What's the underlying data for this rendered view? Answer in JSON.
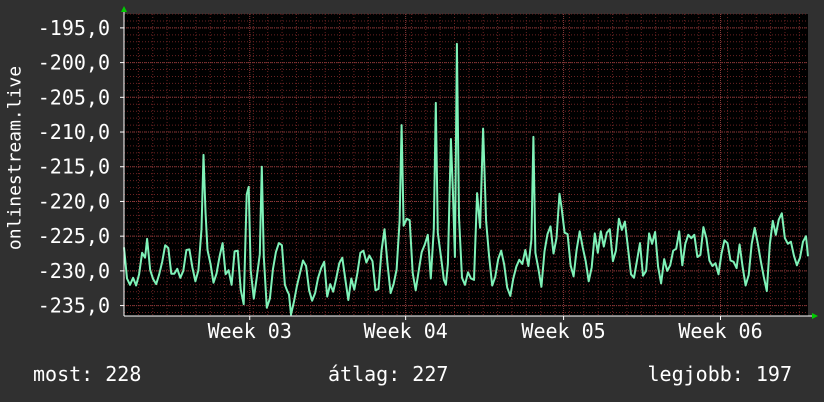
{
  "chart_data": {
    "type": "line",
    "ylabel": "onlinestream.live",
    "ylim": [
      -236.5,
      -193.0
    ],
    "yticks": [
      "-195,0",
      "-200,0",
      "-205,0",
      "-210,0",
      "-215,0",
      "-220,0",
      "-225,0",
      "-230,0",
      "-235,0"
    ],
    "ytick_values": [
      -195,
      -200,
      -205,
      -210,
      -215,
      -220,
      -225,
      -230,
      -235
    ],
    "xlim": [
      0,
      6.8
    ],
    "xticks": [
      "Week 03",
      "Week 04",
      "Week 05",
      "Week 06"
    ],
    "xtick_values": [
      1.25,
      2.8,
      4.37,
      5.93
    ],
    "grid": true,
    "colors": {
      "background": "#303030",
      "plot": "#000000",
      "grid": "#6a2222",
      "line": "#7ff2b8",
      "axis": "#ffffff",
      "arrow": "#00cc00"
    },
    "series": [
      {
        "values": [
          [
            0.0,
            -226.6
          ],
          [
            0.03,
            -231.1
          ],
          [
            0.06,
            -232.0
          ],
          [
            0.09,
            -231.0
          ],
          [
            0.12,
            -232.1
          ],
          [
            0.15,
            -230.5
          ],
          [
            0.18,
            -227.4
          ],
          [
            0.21,
            -228.1
          ],
          [
            0.23,
            -225.4
          ],
          [
            0.26,
            -229.9
          ],
          [
            0.29,
            -231.2
          ],
          [
            0.32,
            -231.9
          ],
          [
            0.35,
            -230.5
          ],
          [
            0.38,
            -228.7
          ],
          [
            0.41,
            -226.3
          ],
          [
            0.44,
            -226.7
          ],
          [
            0.47,
            -230.4
          ],
          [
            0.5,
            -230.4
          ],
          [
            0.53,
            -229.7
          ],
          [
            0.56,
            -231.0
          ],
          [
            0.59,
            -230.0
          ],
          [
            0.62,
            -227.0
          ],
          [
            0.65,
            -226.9
          ],
          [
            0.68,
            -229.5
          ],
          [
            0.71,
            -231.5
          ],
          [
            0.74,
            -229.9
          ],
          [
            0.77,
            -224.0
          ],
          [
            0.79,
            -213.3
          ],
          [
            0.81,
            -221.5
          ],
          [
            0.83,
            -227.0
          ],
          [
            0.86,
            -229.0
          ],
          [
            0.89,
            -231.7
          ],
          [
            0.92,
            -230.4
          ],
          [
            0.95,
            -227.9
          ],
          [
            0.98,
            -226.0
          ],
          [
            1.01,
            -230.5
          ],
          [
            1.04,
            -229.9
          ],
          [
            1.07,
            -232.0
          ],
          [
            1.1,
            -227.2
          ],
          [
            1.13,
            -227.1
          ],
          [
            1.16,
            -232.7
          ],
          [
            1.19,
            -234.8
          ],
          [
            1.22,
            -219.0
          ],
          [
            1.24,
            -217.9
          ],
          [
            1.26,
            -229.9
          ],
          [
            1.29,
            -234.0
          ],
          [
            1.32,
            -230.9
          ],
          [
            1.35,
            -227.6
          ],
          [
            1.37,
            -215.0
          ],
          [
            1.39,
            -228.0
          ],
          [
            1.42,
            -235.3
          ],
          [
            1.45,
            -234.0
          ],
          [
            1.48,
            -229.8
          ],
          [
            1.51,
            -227.3
          ],
          [
            1.54,
            -226.0
          ],
          [
            1.57,
            -226.3
          ],
          [
            1.6,
            -232.0
          ],
          [
            1.62,
            -232.8
          ],
          [
            1.64,
            -233.4
          ],
          [
            1.66,
            -236.3
          ],
          [
            1.69,
            -234.4
          ],
          [
            1.72,
            -232.1
          ],
          [
            1.75,
            -230.3
          ],
          [
            1.78,
            -228.5
          ],
          [
            1.81,
            -229.3
          ],
          [
            1.84,
            -232.8
          ],
          [
            1.87,
            -234.3
          ],
          [
            1.9,
            -233.2
          ],
          [
            1.93,
            -231.0
          ],
          [
            1.96,
            -229.6
          ],
          [
            1.99,
            -228.7
          ],
          [
            2.02,
            -233.7
          ],
          [
            2.05,
            -231.9
          ],
          [
            2.08,
            -233.0
          ],
          [
            2.11,
            -231.1
          ],
          [
            2.14,
            -228.9
          ],
          [
            2.17,
            -228.1
          ],
          [
            2.2,
            -231.2
          ],
          [
            2.23,
            -234.2
          ],
          [
            2.26,
            -231.1
          ],
          [
            2.29,
            -232.7
          ],
          [
            2.32,
            -230.3
          ],
          [
            2.35,
            -227.4
          ],
          [
            2.38,
            -227.1
          ],
          [
            2.41,
            -228.8
          ],
          [
            2.44,
            -227.8
          ],
          [
            2.47,
            -228.6
          ],
          [
            2.5,
            -232.8
          ],
          [
            2.53,
            -232.6
          ],
          [
            2.56,
            -227.1
          ],
          [
            2.59,
            -224.0
          ],
          [
            2.62,
            -229.0
          ],
          [
            2.65,
            -233.2
          ],
          [
            2.68,
            -231.9
          ],
          [
            2.71,
            -229.8
          ],
          [
            2.74,
            -222.8
          ],
          [
            2.76,
            -209.0
          ],
          [
            2.78,
            -223.5
          ],
          [
            2.81,
            -222.5
          ],
          [
            2.84,
            -222.7
          ],
          [
            2.87,
            -230.3
          ],
          [
            2.9,
            -232.8
          ],
          [
            2.93,
            -230.0
          ],
          [
            2.96,
            -227.3
          ],
          [
            2.99,
            -226.2
          ],
          [
            3.02,
            -224.8
          ],
          [
            3.05,
            -231.1
          ],
          [
            3.08,
            -224.0
          ],
          [
            3.1,
            -205.8
          ],
          [
            3.12,
            -224.5
          ],
          [
            3.15,
            -227.9
          ],
          [
            3.18,
            -231.3
          ],
          [
            3.2,
            -232.0
          ],
          [
            3.22,
            -229.0
          ],
          [
            3.25,
            -211.0
          ],
          [
            3.27,
            -218.6
          ],
          [
            3.29,
            -228.0
          ],
          [
            3.31,
            -197.3
          ],
          [
            3.33,
            -222.3
          ],
          [
            3.36,
            -231.0
          ],
          [
            3.39,
            -232.0
          ],
          [
            3.42,
            -230.2
          ],
          [
            3.45,
            -231.1
          ],
          [
            3.48,
            -231.3
          ],
          [
            3.51,
            -218.8
          ],
          [
            3.54,
            -223.8
          ],
          [
            3.57,
            -209.5
          ],
          [
            3.6,
            -222.8
          ],
          [
            3.63,
            -227.9
          ],
          [
            3.66,
            -232.1
          ],
          [
            3.69,
            -230.9
          ],
          [
            3.72,
            -228.3
          ],
          [
            3.75,
            -227.1
          ],
          [
            3.78,
            -229.1
          ],
          [
            3.81,
            -232.4
          ],
          [
            3.84,
            -233.6
          ],
          [
            3.87,
            -231.1
          ],
          [
            3.9,
            -229.4
          ],
          [
            3.93,
            -228.4
          ],
          [
            3.96,
            -229.0
          ],
          [
            3.99,
            -227.0
          ],
          [
            4.02,
            -229.3
          ],
          [
            4.05,
            -225.5
          ],
          [
            4.07,
            -210.7
          ],
          [
            4.09,
            -227.4
          ],
          [
            4.12,
            -229.7
          ],
          [
            4.15,
            -232.3
          ],
          [
            4.18,
            -227.2
          ],
          [
            4.21,
            -224.7
          ],
          [
            4.24,
            -223.6
          ],
          [
            4.27,
            -227.5
          ],
          [
            4.3,
            -225.3
          ],
          [
            4.33,
            -218.9
          ],
          [
            4.35,
            -220.9
          ],
          [
            4.38,
            -224.5
          ],
          [
            4.41,
            -224.7
          ],
          [
            4.44,
            -229.2
          ],
          [
            4.47,
            -230.8
          ],
          [
            4.5,
            -227.0
          ],
          [
            4.53,
            -224.3
          ],
          [
            4.56,
            -226.6
          ],
          [
            4.59,
            -228.6
          ],
          [
            4.62,
            -231.5
          ],
          [
            4.65,
            -229.5
          ],
          [
            4.68,
            -224.6
          ],
          [
            4.71,
            -227.4
          ],
          [
            4.74,
            -224.3
          ],
          [
            4.77,
            -226.5
          ],
          [
            4.8,
            -224.5
          ],
          [
            4.83,
            -224.0
          ],
          [
            4.86,
            -228.6
          ],
          [
            4.89,
            -227.1
          ],
          [
            4.92,
            -222.5
          ],
          [
            4.95,
            -224.1
          ],
          [
            4.98,
            -222.9
          ],
          [
            5.01,
            -226.6
          ],
          [
            5.04,
            -230.5
          ],
          [
            5.07,
            -231.0
          ],
          [
            5.1,
            -228.5
          ],
          [
            5.13,
            -226.0
          ],
          [
            5.16,
            -230.7
          ],
          [
            5.19,
            -230.0
          ],
          [
            5.22,
            -224.6
          ],
          [
            5.25,
            -226.1
          ],
          [
            5.28,
            -224.4
          ],
          [
            5.31,
            -229.4
          ],
          [
            5.34,
            -231.8
          ],
          [
            5.37,
            -228.3
          ],
          [
            5.4,
            -230.0
          ],
          [
            5.43,
            -229.2
          ],
          [
            5.46,
            -227.1
          ],
          [
            5.49,
            -226.8
          ],
          [
            5.52,
            -224.3
          ],
          [
            5.55,
            -229.2
          ],
          [
            5.58,
            -226.1
          ],
          [
            5.61,
            -224.8
          ],
          [
            5.64,
            -225.3
          ],
          [
            5.67,
            -224.8
          ],
          [
            5.7,
            -228.0
          ],
          [
            5.73,
            -227.7
          ],
          [
            5.76,
            -223.7
          ],
          [
            5.79,
            -225.3
          ],
          [
            5.82,
            -228.5
          ],
          [
            5.85,
            -229.3
          ],
          [
            5.88,
            -228.9
          ],
          [
            5.91,
            -230.5
          ],
          [
            5.94,
            -227.5
          ],
          [
            5.97,
            -225.6
          ],
          [
            6.0,
            -226.0
          ],
          [
            6.03,
            -228.5
          ],
          [
            6.06,
            -228.7
          ],
          [
            6.09,
            -229.6
          ],
          [
            6.12,
            -226.2
          ],
          [
            6.15,
            -229.4
          ],
          [
            6.18,
            -232.1
          ],
          [
            6.21,
            -230.6
          ],
          [
            6.24,
            -226.1
          ],
          [
            6.27,
            -223.8
          ],
          [
            6.3,
            -226.0
          ],
          [
            6.33,
            -228.5
          ],
          [
            6.36,
            -230.8
          ],
          [
            6.39,
            -232.9
          ],
          [
            6.42,
            -226.2
          ],
          [
            6.45,
            -222.8
          ],
          [
            6.48,
            -224.8
          ],
          [
            6.51,
            -222.6
          ],
          [
            6.54,
            -221.7
          ],
          [
            6.57,
            -225.3
          ],
          [
            6.6,
            -226.1
          ],
          [
            6.63,
            -225.8
          ],
          [
            6.66,
            -227.8
          ],
          [
            6.69,
            -229.2
          ],
          [
            6.72,
            -228.1
          ],
          [
            6.75,
            -225.8
          ],
          [
            6.78,
            -225.0
          ],
          [
            6.8,
            -227.9
          ]
        ]
      }
    ]
  },
  "footer": {
    "now": "most: 228",
    "avg": "átlag: 227",
    "max": "legjobb: 197"
  }
}
